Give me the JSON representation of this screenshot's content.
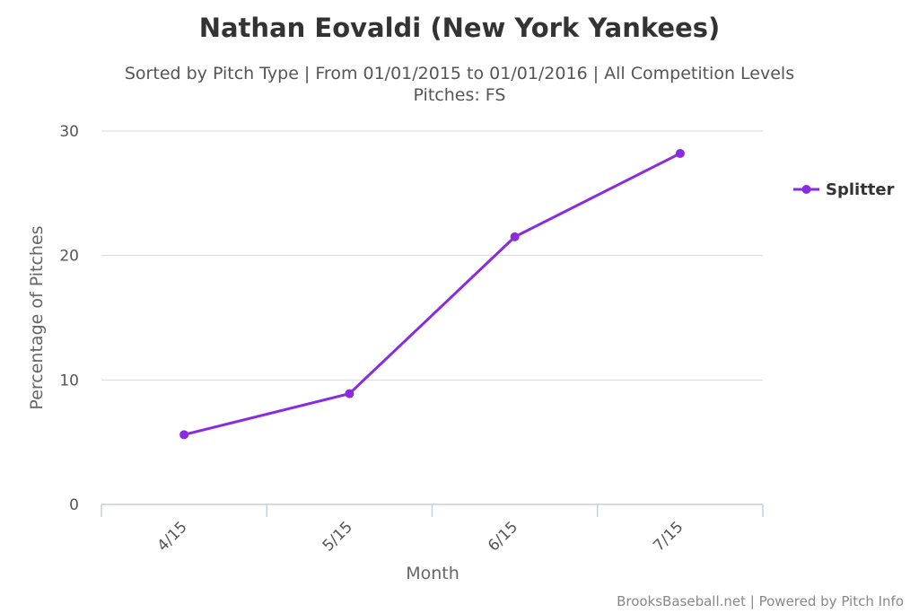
{
  "chart_data": {
    "type": "line",
    "title": "Nathan Eovaldi (New York Yankees)",
    "subtitle_lines": [
      "Sorted by Pitch Type | From 01/01/2015 to 01/01/2016 | All Competition Levels",
      "Pitches: FS"
    ],
    "xlabel": "Month",
    "ylabel": "Percentage of Pitches",
    "categories": [
      "4/15",
      "5/15",
      "6/15",
      "7/15"
    ],
    "series": [
      {
        "name": "Splitter",
        "color": "#8a2be2",
        "values": [
          5.6,
          8.9,
          21.5,
          28.2
        ]
      }
    ],
    "ylim": [
      0,
      30
    ],
    "yticks": [
      0,
      10,
      20,
      30
    ],
    "grid": true,
    "legend_position": "right"
  },
  "credits": "BrooksBaseball.net | Powered by Pitch Info"
}
